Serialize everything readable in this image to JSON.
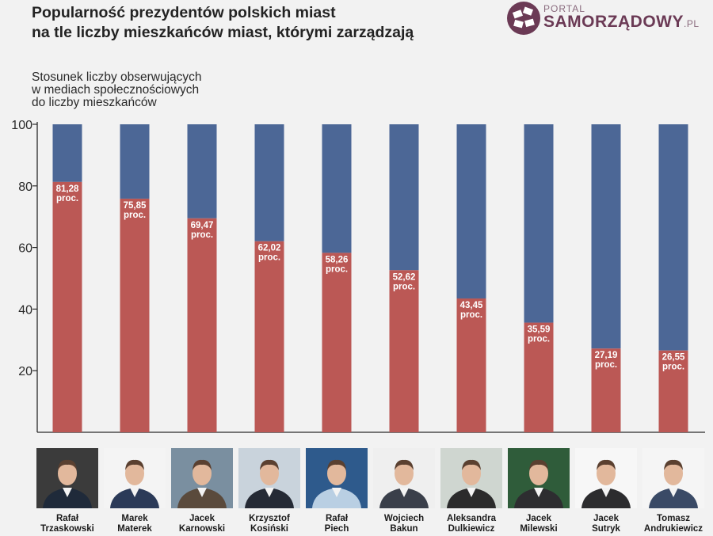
{
  "title": {
    "line1": "Popularność prezydentów polskich miast",
    "line2": "na tle liczby mieszkańców miast, którymi zarządzają"
  },
  "logo": {
    "small": "PORTAL",
    "big": "SAMORZĄDOWY",
    "suffix": ".PL"
  },
  "chart_data": {
    "type": "bar",
    "stacked": true,
    "ylabel": "Stosunek liczby obserwujących\nw mediach społecznościowych\ndo liczby mieszkańców",
    "ylim": [
      0,
      100
    ],
    "yticks": [
      20,
      40,
      60,
      80,
      100
    ],
    "categories": [
      "Rafał Trzaskowski",
      "Marek Materek",
      "Jacek Karnowski",
      "Krzysztof Kosiński",
      "Rafał Piech",
      "Wojciech Bakun",
      "Aleksandra Dulkiewicz",
      "Jacek Milewski",
      "Jacek Sutryk",
      "Tomasz Andrukiewicz"
    ],
    "series": [
      {
        "values": [
          81.28,
          75.85,
          69.47,
          62.02,
          58.26,
          52.62,
          43.45,
          35.59,
          27.19,
          26.55
        ]
      },
      {
        "values": [
          18.72,
          24.15,
          30.53,
          37.98,
          41.74,
          47.38,
          56.55,
          64.41,
          72.81,
          73.45
        ]
      }
    ],
    "data_labels": [
      {
        "value": "81,28",
        "unit": "proc."
      },
      {
        "value": "75,85",
        "unit": "proc."
      },
      {
        "value": "69,47",
        "unit": "proc."
      },
      {
        "value": "62,02",
        "unit": "proc."
      },
      {
        "value": "58,26",
        "unit": "proc."
      },
      {
        "value": "52,62",
        "unit": "proc."
      },
      {
        "value": "43,45",
        "unit": "proc."
      },
      {
        "value": "35,59",
        "unit": "proc."
      },
      {
        "value": "27,19",
        "unit": "proc."
      },
      {
        "value": "26,55",
        "unit": "proc."
      }
    ],
    "colors": {
      "lower": "#bb5855",
      "upper": "#4c6796"
    },
    "grid": false
  },
  "people": [
    {
      "first": "Rafał",
      "last": "Trzaskowski"
    },
    {
      "first": "Marek",
      "last": "Materek"
    },
    {
      "first": "Jacek",
      "last": "Karnowski"
    },
    {
      "first": "Krzysztof",
      "last": "Kosiński"
    },
    {
      "first": "Rafał",
      "last": "Piech"
    },
    {
      "first": "Wojciech",
      "last": "Bakun"
    },
    {
      "first": "Aleksandra",
      "last": "Dulkiewicz"
    },
    {
      "first": "Jacek",
      "last": "Milewski"
    },
    {
      "first": "Jacek",
      "last": "Sutryk"
    },
    {
      "first": "Tomasz",
      "last": "Andrukiewicz"
    }
  ],
  "photo_backgrounds": [
    "#3b3b3b",
    "#f4f4f4",
    "#7a8fa0",
    "#c9d3dc",
    "#2e5a8c",
    "#efefef",
    "#cfd6d0",
    "#2f5c3a",
    "#f7f7f7",
    "#f5f5f5"
  ],
  "photo_shirts": [
    "#1f2a3a",
    "#2b3a58",
    "#5a4a3c",
    "#252a35",
    "#b9cfe3",
    "#3a3f4a",
    "#2b2b2b",
    "#2d2d30",
    "#2c2c2e",
    "#3a4a66"
  ]
}
